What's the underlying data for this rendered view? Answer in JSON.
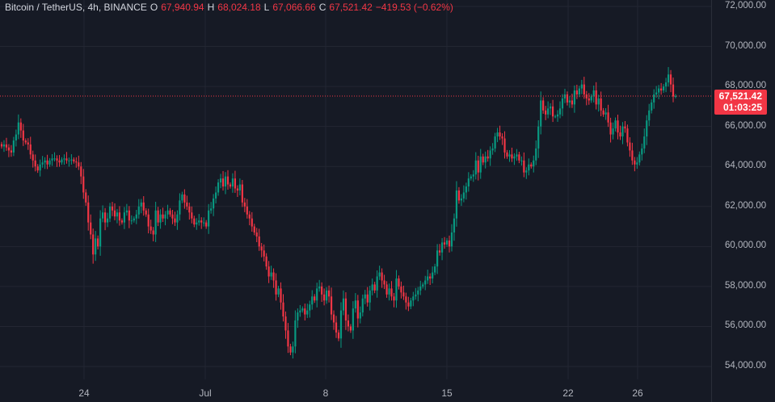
{
  "legend": {
    "symbol": "Bitcoin / TetherUS, 4h, BINANCE",
    "open_key": "O",
    "open": "67,940.94",
    "high_key": "H",
    "high": "68,024.18",
    "low_key": "L",
    "low": "67,066.66",
    "close_key": "C",
    "close": "67,521.42",
    "change": "−419.53 (−0.62%)"
  },
  "price_tag": {
    "price": "67,521.42",
    "countdown": "01:03:25"
  },
  "colors": {
    "up": "#089981",
    "down": "#f23645",
    "grid": "#232632",
    "background": "#161a25"
  },
  "chart_data": {
    "type": "candlestick",
    "ylim": [
      53400,
      72000
    ],
    "y_ticks": [
      "72,000.00",
      "70,000.00",
      "68,000.00",
      "66,000.00",
      "64,000.00",
      "62,000.00",
      "60,000.00",
      "58,000.00",
      "56,000.00",
      "54,000.00"
    ],
    "y_tick_values": [
      72000,
      70000,
      68000,
      66000,
      64000,
      62000,
      60000,
      58000,
      56000,
      54000
    ],
    "x_ticks": [
      "24",
      "Jul",
      "8",
      "15",
      "22",
      "26"
    ],
    "last_price": 67521.42,
    "closes": [
      65000,
      65100,
      64950,
      64800,
      64700,
      65300,
      65600,
      66200,
      65800,
      65300,
      65200,
      65100,
      64600,
      64300,
      64000,
      63800,
      64100,
      64200,
      64300,
      64100,
      64300,
      64400,
      64400,
      64300,
      64200,
      64350,
      64400,
      64300,
      64300,
      64350,
      64250,
      64200,
      64000,
      63500,
      62700,
      62200,
      61200,
      60600,
      59600,
      60400,
      60000,
      61400,
      61700,
      61200,
      61400,
      62000,
      61800,
      61500,
      61700,
      61300,
      61200,
      61700,
      61800,
      61300,
      61300,
      61400,
      61600,
      62000,
      62200,
      61800,
      61600,
      61000,
      60800,
      60600,
      61800,
      61200,
      61600,
      61400,
      61600,
      61800,
      61600,
      61400,
      61200,
      61600,
      62300,
      62600,
      62200,
      62000,
      61700,
      61400,
      61100,
      61200,
      61300,
      61200,
      61200,
      61000,
      61800,
      61900,
      62400,
      62700,
      63200,
      63400,
      63000,
      63500,
      63100,
      63000,
      63400,
      62900,
      62800,
      63100,
      62200,
      62000,
      61600,
      61400,
      61000,
      60700,
      60500,
      60000,
      59800,
      59500,
      59000,
      58500,
      58700,
      58300,
      57600,
      57900,
      57200,
      56500,
      55800,
      55000,
      54700,
      55000,
      56300,
      56700,
      56800,
      56900,
      56600,
      56800,
      57100,
      57500,
      57300,
      57900,
      58000,
      57600,
      57300,
      57800,
      57500,
      56600,
      56200,
      55700,
      55400,
      56800,
      57400,
      56300,
      56000,
      55800,
      56900,
      57300,
      56400,
      56700,
      57400,
      57600,
      57200,
      57800,
      58100,
      57800,
      58500,
      58700,
      58300,
      58100,
      57600,
      57900,
      57500,
      57300,
      58400,
      58000,
      57700,
      57500,
      57200,
      57000,
      57300,
      57500,
      57600,
      57800,
      58000,
      58100,
      58300,
      58500,
      58400,
      58700,
      59000,
      59800,
      59700,
      60200,
      60100,
      60300,
      60000,
      60700,
      61400,
      62800,
      62300,
      62400,
      62700,
      63000,
      63400,
      63500,
      63600,
      64300,
      63700,
      64500,
      64200,
      64500,
      64400,
      64800,
      64900,
      65500,
      65700,
      65500,
      65400,
      64700,
      64500,
      64600,
      64400,
      64500,
      64600,
      64300,
      64300,
      63700,
      63800,
      64100,
      64000,
      64300,
      64900,
      66000,
      67300,
      66800,
      66600,
      66900,
      67000,
      66500,
      66500,
      66600,
      66900,
      67400,
      67600,
      67200,
      67300,
      67100,
      67800,
      67600,
      67900,
      68100,
      67600,
      67400,
      67300,
      67500,
      67800,
      67100,
      67400,
      66800,
      66600,
      66700,
      66200,
      65600,
      65900,
      66300,
      65700,
      65500,
      66000,
      65900,
      65200,
      64800,
      64300,
      64100,
      64200,
      64600,
      64900,
      65500,
      66300,
      66800,
      67200,
      67600,
      67700,
      67900,
      67800,
      68000,
      68200,
      68600,
      68100,
      67500,
      67521.42
    ]
  }
}
